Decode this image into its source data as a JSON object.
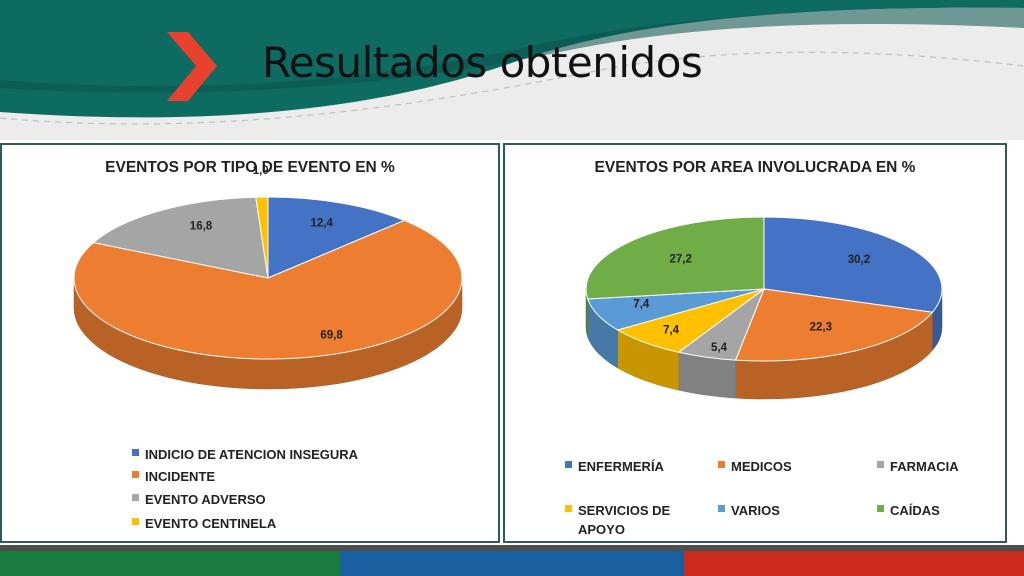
{
  "slide": {
    "title": "Resultados obtenidos"
  },
  "colors": {
    "teal": "#0e6b62",
    "arrow": "#e8412d",
    "footer_green": "#1a7b3f",
    "footer_blue": "#1a5fa0",
    "footer_red": "#cc2a1f"
  },
  "chart_data": [
    {
      "type": "pie",
      "title": "EVENTOS POR TIPO DE EVENTO EN %",
      "categories": [
        "INDICIO DE ATENCION INSEGURA",
        "INCIDENTE",
        "EVENTO ADVERSO",
        "EVENTO CENTINELA"
      ],
      "values": [
        12.4,
        69.8,
        16.8,
        1.0
      ],
      "value_labels": [
        "12,4",
        "69,8",
        "16,8",
        "1,0"
      ],
      "colors": [
        "#4472c4",
        "#ed7d31",
        "#a5a5a5",
        "#ffc000"
      ],
      "style": "3d",
      "legend": "bottom"
    },
    {
      "type": "pie",
      "title": "EVENTOS POR AREA INVOLUCRADA EN %",
      "categories": [
        "ENFERMERÍA",
        "MEDICOS",
        "FARMACIA",
        "SERVICIOS DE APOYO",
        "VARIOS",
        "CAÍDAS"
      ],
      "values": [
        30.2,
        22.3,
        5.4,
        7.4,
        7.4,
        27.2
      ],
      "value_labels": [
        "30,2",
        "22,3",
        "5,4",
        "7,4",
        "7,4",
        "27,2"
      ],
      "colors": [
        "#4472c4",
        "#ed7d31",
        "#a5a5a5",
        "#ffc000",
        "#5b9bd5",
        "#70ad47"
      ],
      "style": "3d",
      "legend": "bottom"
    }
  ]
}
